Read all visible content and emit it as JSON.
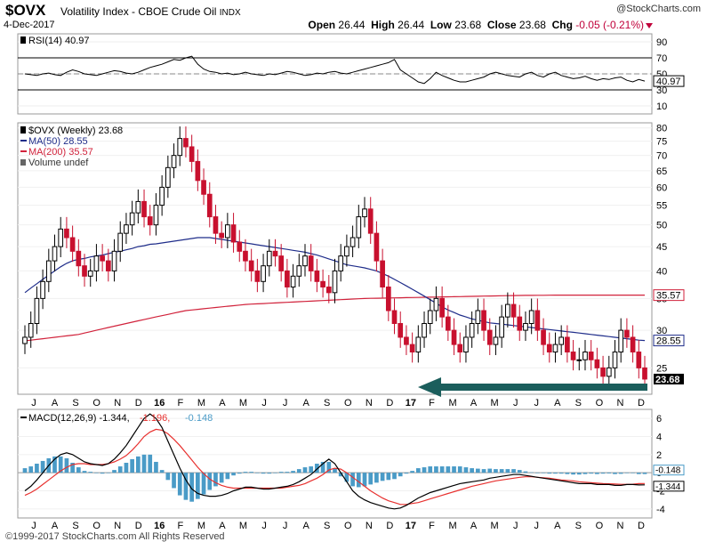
{
  "header": {
    "symbol": "$OVX",
    "description": "Volatility Index - CBOE Crude Oil",
    "exchange": "INDX",
    "date": "4-Dec-2017",
    "brand": "@StockCharts.com",
    "open_label": "Open",
    "open": "26.44",
    "high_label": "High",
    "high": "26.44",
    "low_label": "Low",
    "low": "23.68",
    "close_label": "Close",
    "close": "23.68",
    "chg_label": "Chg",
    "chg": "-0.05 (-0.21%)"
  },
  "footer": "©1999-2017 StockCharts.com All Rights Reserved",
  "colors": {
    "up": "#000000",
    "down": "#c8102e",
    "ma50": "#1f2d8a",
    "ma200": "#d1223b",
    "arrow": "#1b5e5c",
    "macd_hist": "#4a9bc7",
    "signal": "#e8312f"
  },
  "chart_data": [
    {
      "type": "line",
      "panel": "rsi",
      "legend": "RSI(14) 40.97",
      "current_label": "40.97",
      "y_ticks": [
        90,
        70,
        50,
        30,
        10
      ],
      "ylim": [
        0,
        100
      ],
      "bands": [
        70,
        30
      ],
      "values": [
        50,
        49,
        48,
        50,
        51,
        49,
        48,
        52,
        55,
        53,
        50,
        49,
        48,
        50,
        52,
        54,
        53,
        51,
        50,
        52,
        55,
        58,
        60,
        62,
        65,
        68,
        67,
        70,
        72,
        62,
        56,
        53,
        52,
        50,
        51,
        49,
        50,
        52,
        50,
        49,
        48,
        50,
        49,
        51,
        53,
        52,
        50,
        48,
        49,
        51,
        50,
        52,
        53,
        51,
        50,
        52,
        54,
        56,
        58,
        60,
        62,
        64,
        68,
        55,
        50,
        45,
        40,
        38,
        44,
        52,
        48,
        45,
        42,
        40,
        40,
        42,
        44,
        46,
        50,
        52,
        50,
        48,
        47,
        46,
        50,
        52,
        48,
        46,
        50,
        52,
        48,
        46,
        44,
        45,
        47,
        44,
        42,
        44,
        43,
        45,
        46,
        42,
        40,
        43,
        41
      ]
    },
    {
      "type": "candlestick",
      "panel": "price",
      "legend_price": "$OVX (Weekly) 23.68",
      "legend_ma50": "MA(50) 28.55",
      "legend_ma200": "MA(200) 35.57",
      "legend_volume": "Volume undef",
      "y_ticks": [
        80,
        75,
        70,
        65,
        60,
        55,
        50,
        45,
        40,
        35,
        30,
        25
      ],
      "ylim": [
        22,
        82
      ],
      "scale": "log",
      "last_price_label": "23.68",
      "ma50_label": "28.55",
      "ma200_label": "35.57",
      "x_labels": [
        "J",
        "A",
        "S",
        "O",
        "N",
        "D",
        "16",
        "F",
        "M",
        "A",
        "M",
        "J",
        "J",
        "A",
        "S",
        "O",
        "N",
        "D",
        "17",
        "F",
        "M",
        "A",
        "M",
        "J",
        "J",
        "A",
        "S",
        "O",
        "N",
        "D"
      ],
      "close": [
        29,
        31,
        35,
        38,
        42,
        45,
        49,
        47,
        44,
        41,
        39,
        40,
        43,
        42,
        40,
        44,
        48,
        50,
        53,
        56,
        52,
        50,
        55,
        60,
        66,
        70,
        76,
        73,
        68,
        62,
        58,
        52,
        48,
        47,
        50,
        46,
        44,
        42,
        40,
        38,
        41,
        44,
        43,
        40,
        37,
        39,
        41,
        43,
        40,
        38,
        37,
        36,
        40,
        43,
        45,
        47,
        52,
        54,
        48,
        42,
        37,
        33,
        31,
        29,
        28,
        27,
        29,
        31,
        33,
        35,
        32,
        30,
        28,
        27,
        29,
        31,
        33,
        30,
        28,
        29,
        32,
        34,
        32,
        30,
        31,
        33,
        30,
        28,
        27,
        28,
        29,
        27,
        26,
        26,
        27,
        26,
        25,
        24,
        25,
        27,
        30,
        29,
        27,
        25,
        23.68
      ],
      "ma50": [
        36,
        36.8,
        37.6,
        38.4,
        39.2,
        40,
        40.8,
        41.5,
        42,
        42.3,
        42.5,
        42.8,
        43,
        43.2,
        43.5,
        43.8,
        44,
        44.3,
        44.6,
        45,
        45.2,
        45.5,
        45.6,
        45.8,
        46,
        46.2,
        46.4,
        46.6,
        46.8,
        47,
        47,
        47,
        46.8,
        46.6,
        46.4,
        46.2,
        46,
        45.8,
        45.6,
        45.4,
        45.2,
        45,
        44.8,
        44.6,
        44.4,
        44.2,
        44,
        43.8,
        43.5,
        43.2,
        42.8,
        42.4,
        42,
        41.6,
        41.2,
        41,
        40.8,
        40.6,
        40.3,
        40,
        39.5,
        39,
        38.4,
        37.8,
        37.2,
        36.6,
        36,
        35.4,
        34.8,
        34.2,
        33.6,
        33.1,
        32.7,
        32.3,
        32,
        31.7,
        31.5,
        31.3,
        31.1,
        31,
        30.9,
        30.8,
        30.7,
        30.6,
        30.5,
        30.4,
        30.3,
        30.2,
        30.1,
        30,
        29.9,
        29.8,
        29.7,
        29.6,
        29.5,
        29.4,
        29.3,
        29.2,
        29.1,
        29,
        28.9,
        28.8,
        28.7,
        28.6,
        28.55
      ],
      "ma200": [
        28.5,
        28.6,
        28.7,
        28.8,
        28.9,
        29,
        29.1,
        29.2,
        29.3,
        29.4,
        29.6,
        29.8,
        30,
        30.2,
        30.4,
        30.6,
        30.8,
        31,
        31.2,
        31.4,
        31.6,
        31.8,
        32,
        32.2,
        32.4,
        32.6,
        32.8,
        33,
        33.1,
        33.2,
        33.3,
        33.4,
        33.5,
        33.6,
        33.7,
        33.8,
        33.9,
        34,
        34.05,
        34.1,
        34.15,
        34.2,
        34.25,
        34.3,
        34.35,
        34.4,
        34.45,
        34.5,
        34.55,
        34.6,
        34.65,
        34.7,
        34.75,
        34.8,
        34.85,
        34.9,
        34.95,
        35,
        35.02,
        35.04,
        35.06,
        35.08,
        35.1,
        35.12,
        35.14,
        35.16,
        35.18,
        35.2,
        35.22,
        35.24,
        35.26,
        35.28,
        35.3,
        35.32,
        35.34,
        35.36,
        35.38,
        35.4,
        35.42,
        35.44,
        35.46,
        35.48,
        35.5,
        35.51,
        35.52,
        35.53,
        35.54,
        35.55,
        35.56,
        35.57,
        35.57,
        35.57,
        35.57,
        35.57,
        35.57,
        35.57,
        35.57,
        35.57,
        35.57,
        35.57,
        35.57,
        35.57,
        35.57,
        35.57,
        35.57
      ]
    },
    {
      "type": "line",
      "panel": "macd",
      "legend_prefix": "MACD(12,26,9)",
      "legend_macd": "-1.344",
      "legend_signal": "-1.196",
      "legend_hist": "-0.148",
      "y_ticks": [
        "6",
        "4",
        "2",
        "0",
        "-2",
        "-4"
      ],
      "ylim": [
        -5,
        7
      ],
      "macd_label": "-1.344",
      "hist_label": "-0.148",
      "x_labels": [
        "J",
        "A",
        "S",
        "O",
        "N",
        "D",
        "16",
        "F",
        "M",
        "A",
        "M",
        "J",
        "J",
        "A",
        "S",
        "O",
        "N",
        "D",
        "17",
        "F",
        "M",
        "A",
        "M",
        "J",
        "J",
        "A",
        "S",
        "O",
        "N",
        "D"
      ],
      "macd": [
        -2,
        -1.5,
        -0.8,
        0,
        0.8,
        1.5,
        2,
        2.2,
        2,
        1.6,
        1.2,
        1,
        0.9,
        0.8,
        1,
        1.5,
        2.2,
        3,
        4,
        5,
        6,
        6.5,
        6,
        5,
        3.5,
        2,
        0.5,
        -0.8,
        -1.8,
        -2.3,
        -2.5,
        -2.6,
        -2.6,
        -2.5,
        -2.3,
        -2,
        -1.8,
        -1.6,
        -1.6,
        -1.7,
        -1.8,
        -1.8,
        -1.7,
        -1.6,
        -1.5,
        -1.3,
        -1,
        -0.6,
        -0.2,
        0.4,
        1,
        1.5,
        1,
        0,
        -1,
        -2,
        -2.6,
        -3,
        -3.3,
        -3.5,
        -3.7,
        -3.9,
        -4,
        -3.9,
        -3.6,
        -3.2,
        -2.8,
        -2.5,
        -2.2,
        -2,
        -1.8,
        -1.6,
        -1.4,
        -1.2,
        -1.1,
        -1,
        -0.9,
        -0.8,
        -0.6,
        -0.5,
        -0.4,
        -0.3,
        -0.2,
        -0.2,
        -0.3,
        -0.4,
        -0.5,
        -0.6,
        -0.7,
        -0.8,
        -0.9,
        -1,
        -1.1,
        -1.2,
        -1.2,
        -1.2,
        -1.3,
        -1.3,
        -1.3,
        -1.4,
        -1.4,
        -1.3,
        -1.3,
        -1.35,
        -1.344
      ],
      "signal": [
        -2.5,
        -2.2,
        -1.8,
        -1.3,
        -0.8,
        -0.3,
        0.2,
        0.6,
        0.9,
        1,
        1,
        0.9,
        0.9,
        0.9,
        1,
        1.2,
        1.5,
        1.9,
        2.5,
        3.2,
        4,
        4.5,
        4.8,
        4.7,
        4.3,
        3.7,
        3,
        2.2,
        1.4,
        0.6,
        -0.1,
        -0.7,
        -1.1,
        -1.4,
        -1.6,
        -1.7,
        -1.7,
        -1.7,
        -1.7,
        -1.7,
        -1.7,
        -1.7,
        -1.7,
        -1.7,
        -1.6,
        -1.5,
        -1.4,
        -1.2,
        -0.9,
        -0.6,
        -0.2,
        0.3,
        0.5,
        0.4,
        0,
        -0.5,
        -1,
        -1.5,
        -2,
        -2.4,
        -2.8,
        -3.1,
        -3.3,
        -3.5,
        -3.5,
        -3.4,
        -3.3,
        -3.1,
        -2.9,
        -2.7,
        -2.5,
        -2.3,
        -2.1,
        -1.9,
        -1.7,
        -1.5,
        -1.35,
        -1.2,
        -1.05,
        -0.9,
        -0.8,
        -0.7,
        -0.6,
        -0.5,
        -0.45,
        -0.45,
        -0.5,
        -0.55,
        -0.6,
        -0.7,
        -0.8,
        -0.85,
        -0.9,
        -1,
        -1.05,
        -1.1,
        -1.15,
        -1.2,
        -1.22,
        -1.25,
        -1.28,
        -1.28,
        -1.27,
        -1.2,
        -1.196
      ]
    }
  ]
}
